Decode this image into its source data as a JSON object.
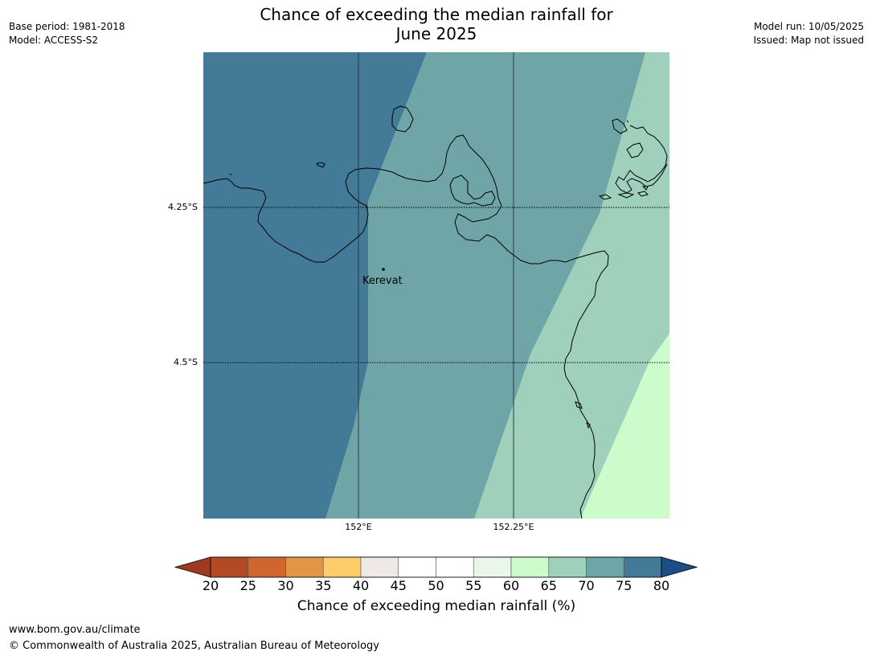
{
  "header": {
    "title_line1": "Chance of exceeding the median rainfall for",
    "title_line2": "June 2025",
    "base_period": "Base period: 1981-2018",
    "model": "Model: ACCESS-S2",
    "model_run": "Model run: 10/05/2025",
    "issued": "Issued: Map not issued"
  },
  "map": {
    "lat_ticks": [
      "4.25°S",
      "4.5°S"
    ],
    "lon_ticks": [
      "152°E",
      "152.25°E"
    ],
    "places": [
      {
        "name": "Kerevat"
      }
    ],
    "zone_colors": {
      "75-80": "#427a98",
      "70-75": "#70a5a8",
      "65-70": "#9ed0bb",
      "60-65": "#ccfccc"
    },
    "coastline_color": "#000000"
  },
  "colorbar": {
    "title": "Chance of exceeding median rainfall (%)",
    "labels": [
      "20",
      "25",
      "30",
      "35",
      "40",
      "45",
      "50",
      "55",
      "60",
      "65",
      "70",
      "75",
      "80"
    ],
    "under_color": "#9e3a22",
    "over_color": "#1a4e85",
    "colors": [
      "#b14a25",
      "#d0652f",
      "#e39546",
      "#fecd69",
      "#eee9e5",
      "#ffffff",
      "#ffffff",
      "#e9f6e9",
      "#ccfccc",
      "#9ed0bb",
      "#70a5a8",
      "#427a98"
    ]
  },
  "footer": {
    "url": "www.bom.gov.au/climate",
    "copyright": "© Commonwealth of Australia 2025, Australian Bureau of Meteorology"
  }
}
